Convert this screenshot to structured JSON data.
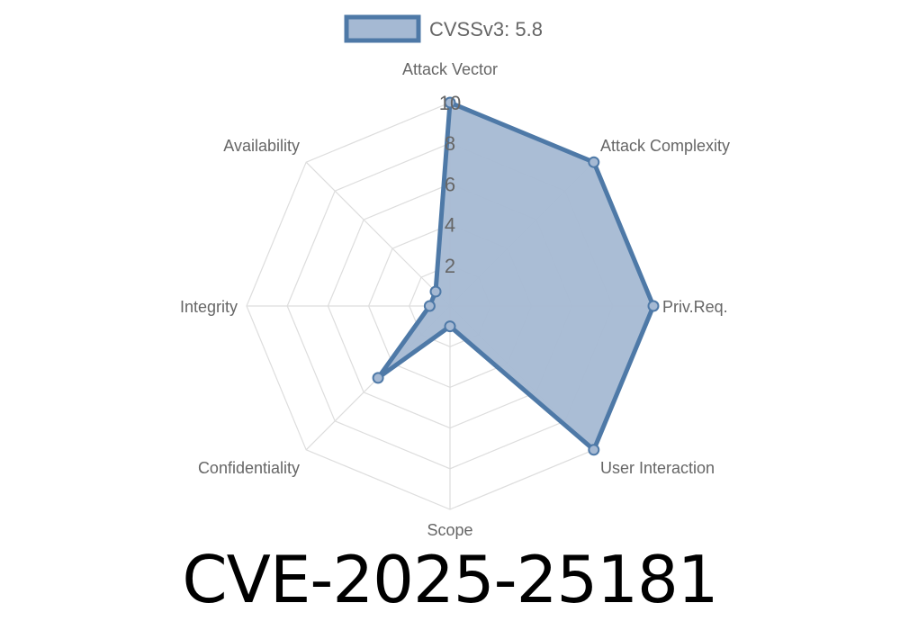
{
  "chart_data": {
    "type": "radar",
    "legend": {
      "label": "CVSSv3: 5.8",
      "position": "top"
    },
    "axes": [
      "Attack Vector",
      "Attack Complexity",
      "Priv.Req.",
      "User Interaction",
      "Scope",
      "Confidentiality",
      "Integrity",
      "Availability"
    ],
    "ticks": [
      "2",
      "4",
      "6",
      "8",
      "10"
    ],
    "range": [
      0,
      10
    ],
    "grid": true,
    "series": [
      {
        "name": "CVSSv3: 5.8",
        "values": [
          10,
          10,
          10,
          10,
          1,
          5,
          1,
          1
        ]
      }
    ],
    "colors": {
      "line": "#4e79a7",
      "fill": "#a5b9d3",
      "grid": "#dddddd",
      "label": "#666666"
    }
  },
  "title": "CVE-2025-25181"
}
